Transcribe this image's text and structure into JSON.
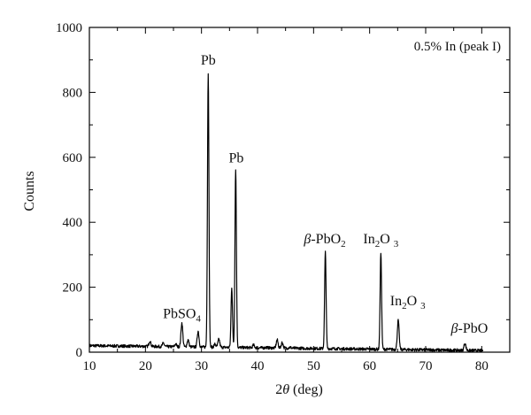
{
  "chart_data": {
    "type": "line",
    "title": "",
    "legend_text": "0.5% In (peak I)",
    "legend_position": "top-right",
    "xlabel": {
      "prefix": "2",
      "symbol": "θ",
      "suffix": " (deg)"
    },
    "ylabel": "Counts",
    "xlim": [
      10,
      85
    ],
    "ylim": [
      0,
      1000
    ],
    "x_ticks": [
      10,
      20,
      30,
      40,
      50,
      60,
      70,
      80
    ],
    "y_ticks": [
      0,
      200,
      400,
      600,
      800,
      1000
    ],
    "grid": false,
    "series_color": "#000000",
    "peaks": [
      {
        "x": 20.8,
        "y": 35
      },
      {
        "x": 23.2,
        "y": 28
      },
      {
        "x": 25.4,
        "y": 25
      },
      {
        "x": 26.5,
        "y": 90
      },
      {
        "x": 27.6,
        "y": 38
      },
      {
        "x": 29.4,
        "y": 65
      },
      {
        "x": 31.2,
        "y": 860
      },
      {
        "x": 32.4,
        "y": 25
      },
      {
        "x": 33.1,
        "y": 40
      },
      {
        "x": 35.4,
        "y": 200
      },
      {
        "x": 36.1,
        "y": 565
      },
      {
        "x": 39.3,
        "y": 22
      },
      {
        "x": 41.6,
        "y": 15
      },
      {
        "x": 43.5,
        "y": 38
      },
      {
        "x": 44.4,
        "y": 30
      },
      {
        "x": 45.8,
        "y": 15
      },
      {
        "x": 52.1,
        "y": 308
      },
      {
        "x": 56.2,
        "y": 10
      },
      {
        "x": 62.0,
        "y": 305
      },
      {
        "x": 65.1,
        "y": 98
      },
      {
        "x": 71.0,
        "y": 8
      },
      {
        "x": 77.0,
        "y": 28
      }
    ],
    "baseline": {
      "start": 20,
      "end": 5
    },
    "annotations": [
      {
        "id": "pbso4",
        "parts": [
          {
            "t": "PbSO"
          },
          {
            "t": "4",
            "sub": true
          }
        ],
        "x": 26.5,
        "y": 105
      },
      {
        "id": "pb1",
        "parts": [
          {
            "t": "Pb"
          }
        ],
        "x": 31.2,
        "y": 885
      },
      {
        "id": "pb2",
        "parts": [
          {
            "t": "Pb"
          }
        ],
        "x": 36.2,
        "y": 585
      },
      {
        "id": "bpbo2",
        "parts": [
          {
            "t": "β"
          },
          {
            "t": "-PbO"
          },
          {
            "t": "2",
            "sub": true
          }
        ],
        "x": 52.0,
        "y": 335
      },
      {
        "id": "in2o3a",
        "parts": [
          {
            "t": "In"
          },
          {
            "t": "2",
            "sub": true
          },
          {
            "t": "O "
          },
          {
            "t": "3",
            "sub": true
          }
        ],
        "x": 62.0,
        "y": 335
      },
      {
        "id": "in2o3b",
        "parts": [
          {
            "t": "In"
          },
          {
            "t": "2",
            "sub": true
          },
          {
            "t": "O "
          },
          {
            "t": "3",
            "sub": true
          }
        ],
        "x": 66.8,
        "y": 145
      },
      {
        "id": "bpbo",
        "parts": [
          {
            "t": "β"
          },
          {
            "t": "-PbO"
          }
        ],
        "x": 77.8,
        "y": 60
      }
    ]
  }
}
